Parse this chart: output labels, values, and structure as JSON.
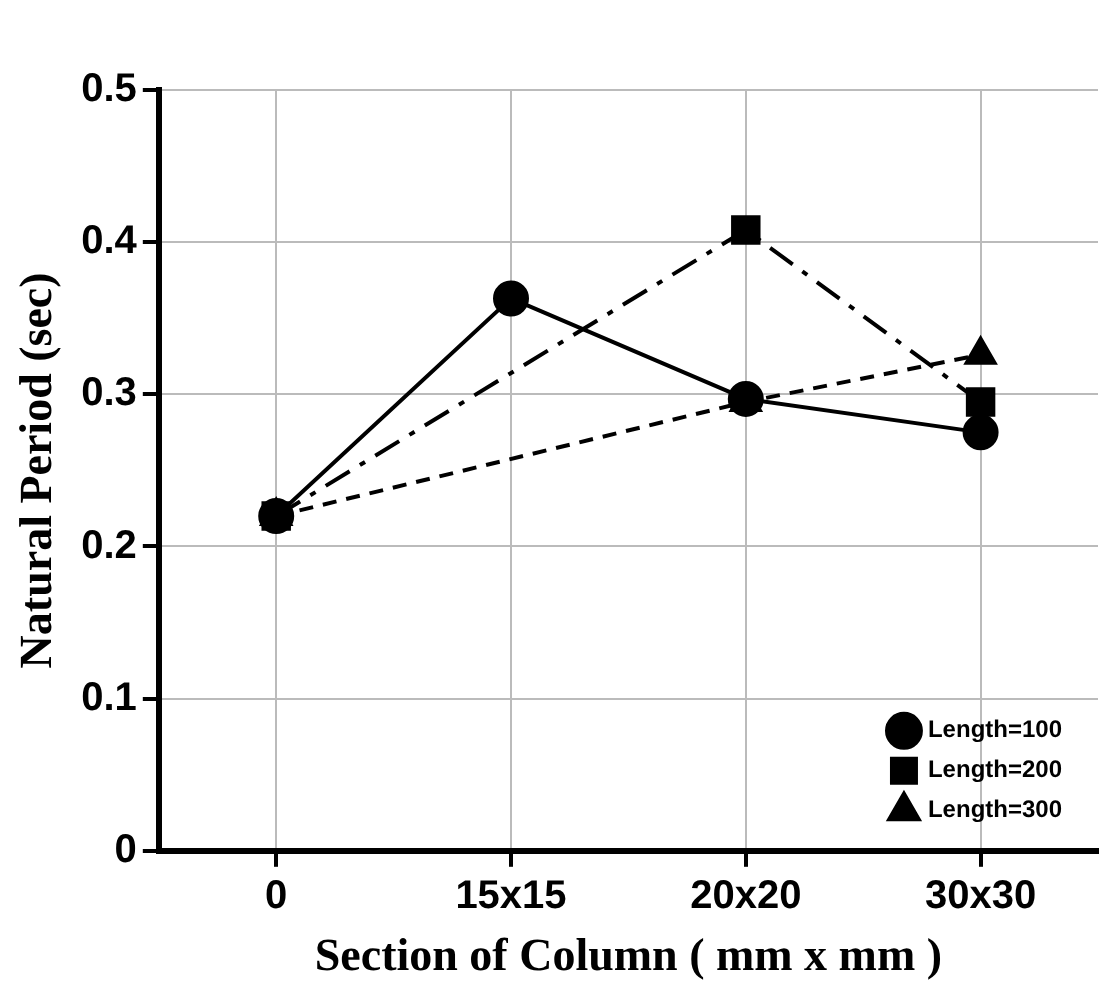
{
  "chart_data": {
    "type": "line",
    "xlabel": "Section of Column ( mm x mm )",
    "ylabel": "Natural Period (sec)",
    "categories": [
      "0",
      "15x15",
      "20x20",
      "30x30"
    ],
    "series": [
      {
        "name": "Length=100",
        "color": "#000000",
        "marker": "circle",
        "line_style": "solid",
        "values": [
          0.22,
          0.363,
          0.297,
          0.275
        ]
      },
      {
        "name": "Length=200",
        "color": "#000000",
        "marker": "square",
        "line_style": "dashdot",
        "values": [
          0.22,
          null,
          0.408,
          0.295
        ]
      },
      {
        "name": "Length=300",
        "color": "#000000",
        "marker": "triangle",
        "line_style": "dashed",
        "values": [
          0.22,
          null,
          0.295,
          0.326
        ]
      }
    ],
    "ylim": [
      0,
      0.5
    ],
    "yticks": [
      0,
      0.1,
      0.2,
      0.3,
      0.4,
      0.5
    ],
    "grid": true,
    "legend": "bottom right"
  }
}
